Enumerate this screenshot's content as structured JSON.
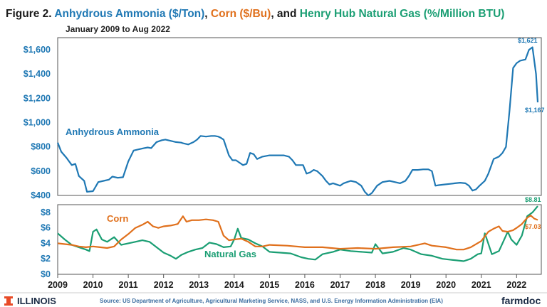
{
  "header": {
    "prefix": "Figure 2. ",
    "ammonia": "Anhydrous Ammonia ($/Ton)",
    "sep1": ", ",
    "corn": "Corn ($/Bu)",
    "sep2": ", and ",
    "gas": "Henry Hub Natural Gas (%/Million BTU)",
    "subtitle": "January 2009 to Aug 2022"
  },
  "colors": {
    "ammonia": "#1f78b4",
    "corn": "#e0701c",
    "gas": "#1a9e73",
    "title_dark": "#1a1a1a"
  },
  "footer": {
    "logo_left": "ILLINOIS",
    "logo_left_icon": "illinois-block-i-icon",
    "source": "Source: US Department of Agriculture, Agricultural Marketing Service, NASS, and U.S. Energy Information Administration (EIA)",
    "logo_right": "farmdoc"
  },
  "chart_data": [
    {
      "type": "line",
      "panel": "top",
      "ylim": [
        400,
        1700
      ],
      "yticks": [
        "$400",
        "$600",
        "$800",
        "$1,000",
        "$1,200",
        "$1,400",
        "$1,600"
      ],
      "ytick_values": [
        400,
        600,
        800,
        1000,
        1200,
        1400,
        1600
      ],
      "grid": false,
      "series": [
        {
          "name": "Anhydrous Ammonia",
          "x": [
            2009.0,
            2009.1,
            2009.25,
            2009.4,
            2009.5,
            2009.6,
            2009.75,
            2009.83,
            2010.0,
            2010.15,
            2010.3,
            2010.45,
            2010.55,
            2010.7,
            2010.85,
            2011.0,
            2011.15,
            2011.3,
            2011.45,
            2011.55,
            2011.65,
            2011.8,
            2011.95,
            2012.05,
            2012.2,
            2012.35,
            2012.5,
            2012.55,
            2012.7,
            2012.85,
            2012.95,
            2013.05,
            2013.2,
            2013.35,
            2013.45,
            2013.55,
            2013.62,
            2013.7,
            2013.85,
            2013.95,
            2014.05,
            2014.15,
            2014.25,
            2014.35,
            2014.45,
            2014.55,
            2014.65,
            2014.8,
            2015.0,
            2015.2,
            2015.4,
            2015.55,
            2015.65,
            2015.75,
            2015.85,
            2015.95,
            2016.05,
            2016.15,
            2016.25,
            2016.35,
            2016.5,
            2016.6,
            2016.7,
            2016.8,
            2016.9,
            2017.0,
            2017.1,
            2017.2,
            2017.3,
            2017.45,
            2017.6,
            2017.7,
            2017.8,
            2017.9,
            2018.05,
            2018.2,
            2018.4,
            2018.55,
            2018.7,
            2018.85,
            2018.95,
            2019.05,
            2019.2,
            2019.35,
            2019.5,
            2019.6,
            2019.7,
            2019.8,
            2019.95,
            2020.1,
            2020.25,
            2020.4,
            2020.55,
            2020.65,
            2020.75,
            2020.85,
            2020.95,
            2021.1,
            2021.2,
            2021.35,
            2021.5,
            2021.6,
            2021.7,
            2021.8,
            2021.9,
            2022.0,
            2022.1,
            2022.25,
            2022.35,
            2022.45,
            2022.55,
            2022.6
          ],
          "values": [
            835,
            760,
            710,
            650,
            660,
            560,
            520,
            430,
            435,
            510,
            520,
            530,
            555,
            545,
            550,
            680,
            770,
            780,
            790,
            795,
            790,
            840,
            855,
            860,
            850,
            840,
            835,
            830,
            820,
            840,
            860,
            890,
            885,
            890,
            890,
            885,
            875,
            860,
            730,
            690,
            690,
            670,
            650,
            660,
            750,
            740,
            700,
            720,
            730,
            730,
            730,
            720,
            690,
            650,
            650,
            650,
            580,
            590,
            610,
            600,
            560,
            520,
            490,
            500,
            490,
            480,
            500,
            510,
            520,
            510,
            480,
            430,
            400,
            420,
            480,
            510,
            520,
            510,
            500,
            520,
            560,
            610,
            610,
            615,
            615,
            600,
            480,
            485,
            490,
            495,
            500,
            505,
            500,
            480,
            440,
            450,
            480,
            520,
            580,
            700,
            720,
            750,
            800,
            1100,
            1450,
            1490,
            1510,
            1520,
            1600,
            1621,
            1400,
            1167
          ]
        }
      ],
      "annotations": [
        "Anhydrous Ammonia",
        "$1,621",
        "$1,167"
      ]
    },
    {
      "type": "line",
      "panel": "bottom",
      "ylim": [
        0,
        9
      ],
      "yticks": [
        "$0",
        "$2",
        "$4",
        "$6",
        "$8"
      ],
      "ytick_values": [
        0,
        2,
        4,
        6,
        8
      ],
      "xlim": [
        2009,
        2022.7
      ],
      "xticks": [
        "2009",
        "2010",
        "2011",
        "2012",
        "2013",
        "2014",
        "2015",
        "2016",
        "2017",
        "2018",
        "2019",
        "2020",
        "2021",
        "2022"
      ],
      "xtick_values": [
        2009,
        2010,
        2011,
        2012,
        2013,
        2014,
        2015,
        2016,
        2017,
        2018,
        2019,
        2020,
        2021,
        2022
      ],
      "grid": false,
      "series": [
        {
          "name": "Corn",
          "x": [
            2009.0,
            2009.2,
            2009.4,
            2009.6,
            2009.8,
            2010.0,
            2010.2,
            2010.4,
            2010.6,
            2010.8,
            2011.0,
            2011.2,
            2011.4,
            2011.55,
            2011.7,
            2011.85,
            2012.0,
            2012.2,
            2012.4,
            2012.55,
            2012.65,
            2012.8,
            2013.0,
            2013.2,
            2013.4,
            2013.55,
            2013.7,
            2013.85,
            2014.0,
            2014.2,
            2014.4,
            2014.6,
            2014.8,
            2015.0,
            2015.5,
            2016.0,
            2016.5,
            2017.0,
            2017.5,
            2018.0,
            2018.5,
            2019.0,
            2019.4,
            2019.6,
            2020.0,
            2020.3,
            2020.5,
            2020.7,
            2021.0,
            2021.2,
            2021.35,
            2021.5,
            2021.6,
            2021.75,
            2021.9,
            2022.0,
            2022.15,
            2022.3,
            2022.4,
            2022.5,
            2022.6
          ],
          "values": [
            4.0,
            3.9,
            3.8,
            3.6,
            3.5,
            3.6,
            3.5,
            3.4,
            3.6,
            4.5,
            5.2,
            6.0,
            6.4,
            6.8,
            6.2,
            6.0,
            6.2,
            6.3,
            6.5,
            7.5,
            6.8,
            7.0,
            7.0,
            7.1,
            7.0,
            6.8,
            5.0,
            4.4,
            4.5,
            4.6,
            4.2,
            3.6,
            3.6,
            3.8,
            3.7,
            3.5,
            3.5,
            3.3,
            3.4,
            3.3,
            3.5,
            3.6,
            4.0,
            3.7,
            3.5,
            3.2,
            3.2,
            3.5,
            4.3,
            5.5,
            5.9,
            6.2,
            5.6,
            5.5,
            5.7,
            6.0,
            6.5,
            7.3,
            7.6,
            7.2,
            7.03
          ]
        },
        {
          "name": "Natural Gas",
          "x": [
            2009.0,
            2009.2,
            2009.4,
            2009.6,
            2009.8,
            2009.9,
            2010.0,
            2010.1,
            2010.25,
            2010.4,
            2010.6,
            2010.8,
            2011.0,
            2011.2,
            2011.4,
            2011.6,
            2011.8,
            2012.0,
            2012.2,
            2012.35,
            2012.5,
            2012.7,
            2012.9,
            2013.1,
            2013.3,
            2013.5,
            2013.7,
            2013.9,
            2014.0,
            2014.1,
            2014.2,
            2014.4,
            2014.6,
            2014.8,
            2015.0,
            2015.3,
            2015.6,
            2015.9,
            2016.1,
            2016.3,
            2016.5,
            2016.8,
            2017.0,
            2017.3,
            2017.6,
            2017.9,
            2018.0,
            2018.2,
            2018.5,
            2018.8,
            2019.0,
            2019.3,
            2019.6,
            2019.9,
            2020.1,
            2020.3,
            2020.5,
            2020.7,
            2020.9,
            2021.0,
            2021.1,
            2021.3,
            2021.5,
            2021.6,
            2021.75,
            2021.85,
            2022.0,
            2022.15,
            2022.3,
            2022.45,
            2022.6
          ],
          "values": [
            5.3,
            4.5,
            3.8,
            3.5,
            3.2,
            3.0,
            5.5,
            5.8,
            4.5,
            4.2,
            4.8,
            3.8,
            4.0,
            4.2,
            4.4,
            4.2,
            3.5,
            2.8,
            2.4,
            2.0,
            2.5,
            2.9,
            3.2,
            3.4,
            4.1,
            3.9,
            3.5,
            3.6,
            4.5,
            5.9,
            4.7,
            4.5,
            4.0,
            3.6,
            2.9,
            2.8,
            2.7,
            2.2,
            2.0,
            1.9,
            2.6,
            2.9,
            3.2,
            3.0,
            2.9,
            2.8,
            3.9,
            2.7,
            2.9,
            3.4,
            3.2,
            2.6,
            2.4,
            2.0,
            1.9,
            1.8,
            1.7,
            2.0,
            2.6,
            2.7,
            5.3,
            2.6,
            3.0,
            4.0,
            5.5,
            4.5,
            3.8,
            5.0,
            7.5,
            8.0,
            8.81
          ]
        }
      ],
      "annotations": [
        "Corn",
        "Natural Gas",
        "$8.81",
        "$7.03"
      ]
    }
  ],
  "labels": {
    "ammonia_series": "Anhydrous Ammonia",
    "corn_series": "Corn",
    "gas_series": "Natural Gas",
    "ammonia_peak": "$1,621",
    "ammonia_last": "$1,167",
    "gas_last": "$8.81",
    "corn_last": "$7.03"
  }
}
